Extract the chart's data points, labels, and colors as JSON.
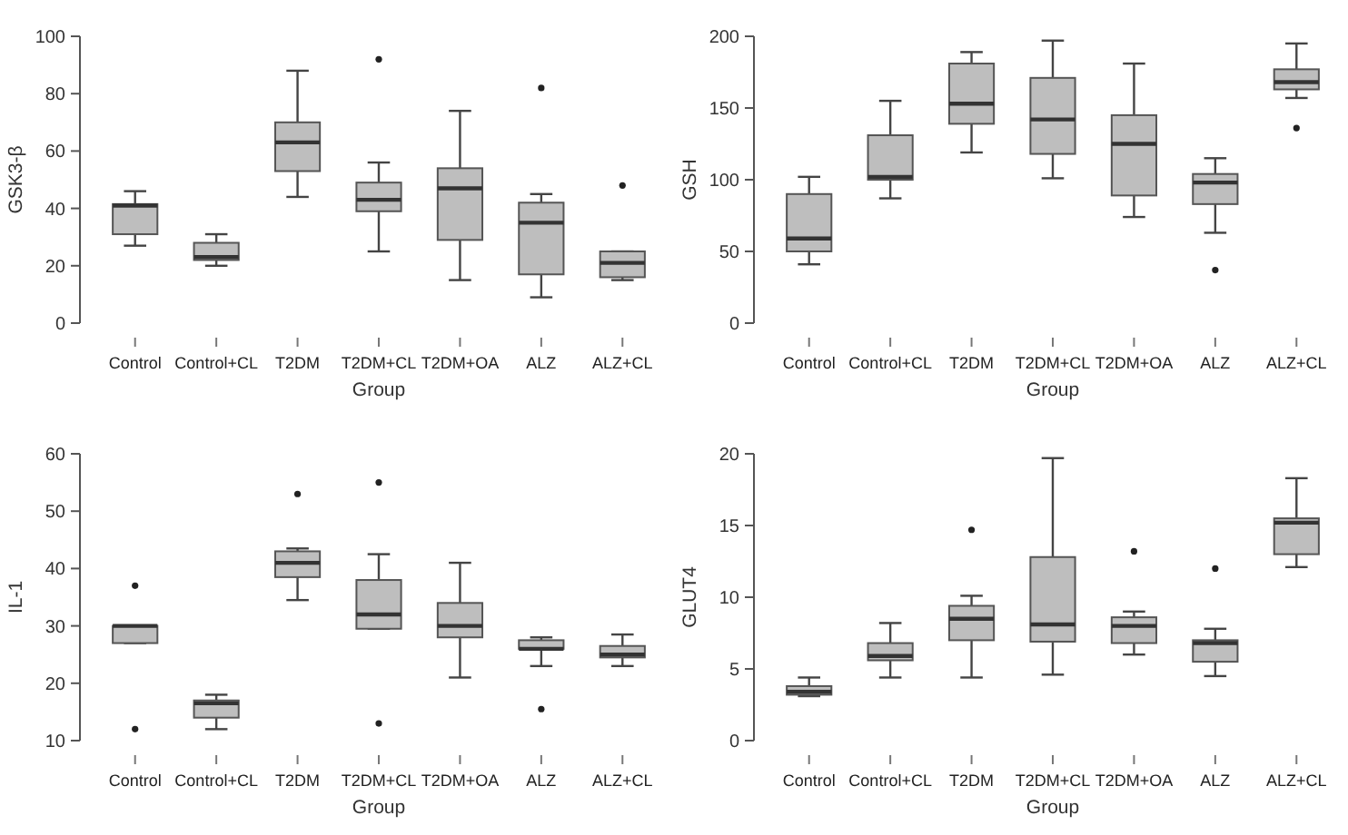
{
  "chart_data": [
    {
      "type": "box",
      "xlabel": "Group",
      "ylabel": "GSK3-β",
      "categories": [
        "Control",
        "Control+CL",
        "T2DM",
        "T2DM+CL",
        "T2DM+OA",
        "ALZ",
        "ALZ+CL"
      ],
      "ylim": [
        0,
        100
      ],
      "yticks": [
        0,
        20,
        40,
        60,
        80,
        100
      ],
      "series": [
        {
          "color": "#bebebe",
          "boxes": [
            {
              "low": 27,
              "q1": 31,
              "median": 41,
              "q3": 41.5,
              "high": 46
            },
            {
              "low": 20,
              "q1": 22,
              "median": 23,
              "q3": 28,
              "high": 31
            },
            {
              "low": 44,
              "q1": 53,
              "median": 63,
              "q3": 70,
              "high": 88
            },
            {
              "low": 25,
              "q1": 39,
              "median": 43,
              "q3": 49,
              "high": 56,
              "outliers": [
                92
              ]
            },
            {
              "low": 15,
              "q1": 29,
              "median": 47,
              "q3": 54,
              "high": 74
            },
            {
              "low": 9,
              "q1": 17,
              "median": 35,
              "q3": 42,
              "high": 45,
              "outliers": [
                82
              ]
            },
            {
              "low": 15,
              "q1": 16,
              "median": 21,
              "q3": 25,
              "high": 25,
              "outliers": [
                48
              ]
            }
          ]
        }
      ]
    },
    {
      "type": "box",
      "xlabel": "Group",
      "ylabel": "GSH",
      "categories": [
        "Control",
        "Control+CL",
        "T2DM",
        "T2DM+CL",
        "T2DM+OA",
        "ALZ",
        "ALZ+CL"
      ],
      "ylim": [
        0,
        200
      ],
      "yticks": [
        0,
        50,
        100,
        150,
        200
      ],
      "series": [
        {
          "color": "#bebebe",
          "boxes": [
            {
              "low": 41,
              "q1": 50,
              "median": 59,
              "q3": 90,
              "high": 102
            },
            {
              "low": 87,
              "q1": 100,
              "median": 102,
              "q3": 131,
              "high": 155
            },
            {
              "low": 119,
              "q1": 139,
              "median": 153,
              "q3": 181,
              "high": 189
            },
            {
              "low": 101,
              "q1": 118,
              "median": 142,
              "q3": 171,
              "high": 197
            },
            {
              "low": 74,
              "q1": 89,
              "median": 125,
              "q3": 145,
              "high": 181
            },
            {
              "low": 63,
              "q1": 83,
              "median": 98,
              "q3": 104,
              "high": 115,
              "outliers": [
                37
              ]
            },
            {
              "low": 157,
              "q1": 163,
              "median": 168,
              "q3": 177,
              "high": 195,
              "outliers": [
                136
              ]
            }
          ]
        }
      ]
    },
    {
      "type": "box",
      "xlabel": "Group",
      "ylabel": "IL-1",
      "categories": [
        "Control",
        "Control+CL",
        "T2DM",
        "T2DM+CL",
        "T2DM+OA",
        "ALZ",
        "ALZ+CL"
      ],
      "ylim": [
        10,
        60
      ],
      "yticks": [
        10,
        20,
        30,
        40,
        50,
        60
      ],
      "series": [
        {
          "color": "#bebebe",
          "boxes": [
            {
              "low": 27,
              "q1": 27,
              "median": 30,
              "q3": 30,
              "high": 30,
              "outliers": [
                37,
                12
              ]
            },
            {
              "low": 12,
              "q1": 14,
              "median": 16.5,
              "q3": 17,
              "high": 18
            },
            {
              "low": 34.5,
              "q1": 38.5,
              "median": 41,
              "q3": 43,
              "high": 43.5,
              "outliers": [
                53
              ]
            },
            {
              "low": 29.5,
              "q1": 29.5,
              "median": 32,
              "q3": 38,
              "high": 42.5,
              "outliers": [
                55,
                13
              ]
            },
            {
              "low": 21,
              "q1": 28,
              "median": 30,
              "q3": 34,
              "high": 41
            },
            {
              "low": 23,
              "q1": 26,
              "median": 26,
              "q3": 27.5,
              "high": 28,
              "outliers": [
                15.5
              ]
            },
            {
              "low": 23,
              "q1": 24.5,
              "median": 25,
              "q3": 26.5,
              "high": 28.5
            }
          ]
        }
      ]
    },
    {
      "type": "box",
      "xlabel": "Group",
      "ylabel": "GLUT4",
      "categories": [
        "Control",
        "Control+CL",
        "T2DM",
        "T2DM+CL",
        "T2DM+OA",
        "ALZ",
        "ALZ+CL"
      ],
      "ylim": [
        0,
        20
      ],
      "yticks": [
        0,
        5,
        10,
        15,
        20
      ],
      "series": [
        {
          "color": "#bebebe",
          "boxes": [
            {
              "low": 3.1,
              "q1": 3.2,
              "median": 3.4,
              "q3": 3.8,
              "high": 4.4
            },
            {
              "low": 4.4,
              "q1": 5.6,
              "median": 5.9,
              "q3": 6.8,
              "high": 8.2
            },
            {
              "low": 4.4,
              "q1": 7,
              "median": 8.5,
              "q3": 9.4,
              "high": 10.1,
              "outliers": [
                14.7
              ]
            },
            {
              "low": 4.6,
              "q1": 6.9,
              "median": 8.1,
              "q3": 12.8,
              "high": 19.7
            },
            {
              "low": 6,
              "q1": 6.8,
              "median": 8,
              "q3": 8.6,
              "high": 9,
              "outliers": [
                13.2
              ]
            },
            {
              "low": 4.5,
              "q1": 5.5,
              "median": 6.8,
              "q3": 7,
              "high": 7.8,
              "outliers": [
                12
              ]
            },
            {
              "low": 12.1,
              "q1": 13,
              "median": 15.2,
              "q3": 15.5,
              "high": 18.3
            }
          ]
        }
      ]
    }
  ]
}
